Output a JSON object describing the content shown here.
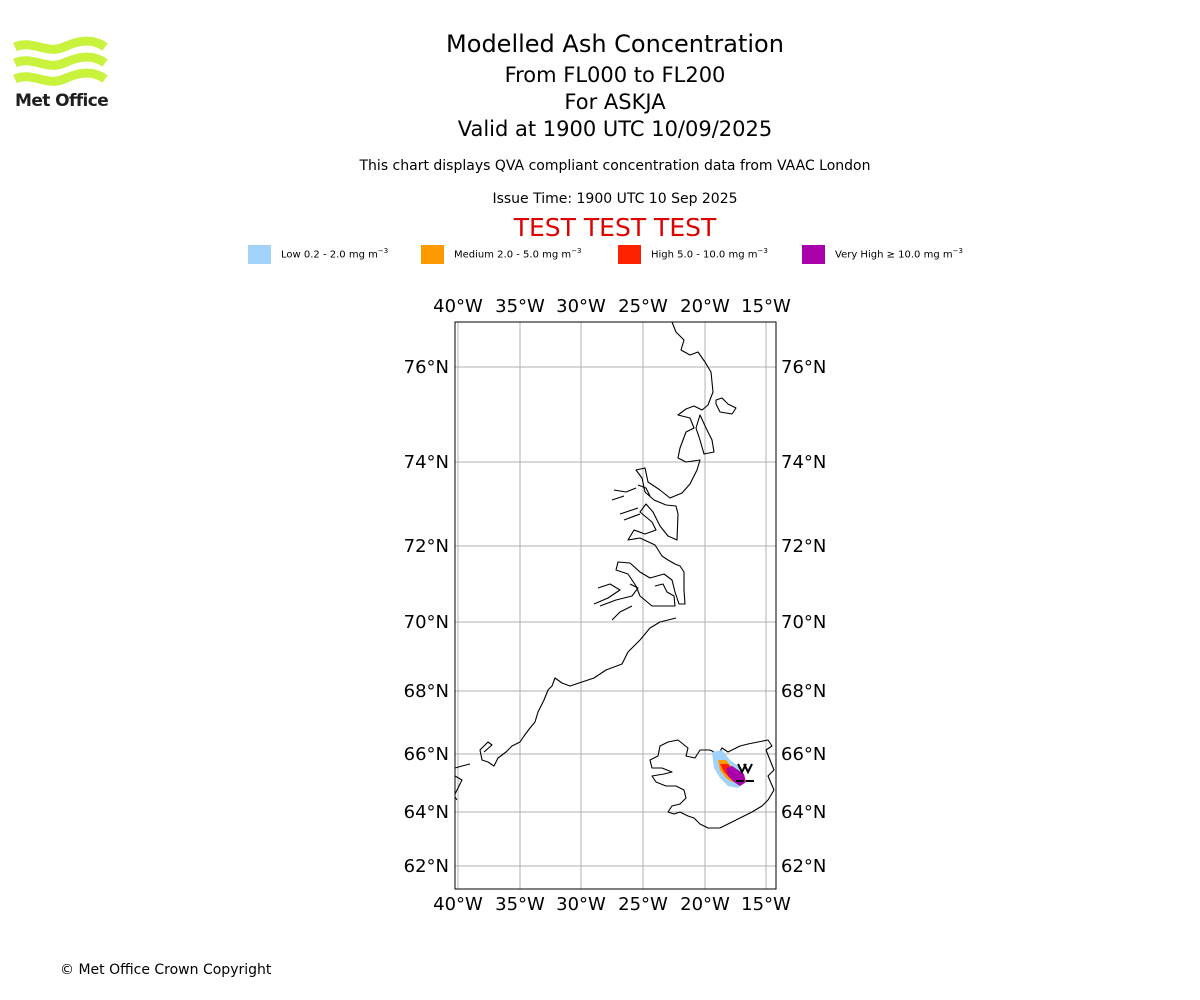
{
  "header": {
    "title": "Modelled Ash Concentration",
    "level_range": "From FL000 to FL200",
    "volcano": "For ASKJA",
    "valid_time": "Valid at 1900 UTC 10/09/2025",
    "note": "This chart displays QVA compliant concentration data from VAAC London",
    "issue_time": "Issue Time: 1900 UTC 10 Sep 2025",
    "test_banner": "TEST TEST TEST"
  },
  "logo": {
    "text": "Met Office",
    "color": "#c8f23c"
  },
  "legend": [
    {
      "label": "Low 0.2 - 2.0 mg m",
      "exp": "−3",
      "color": "#a0d2fa"
    },
    {
      "label": "Medium 2.0 - 5.0 mg m",
      "exp": "−3",
      "color": "#ff9900"
    },
    {
      "label": "High 5.0 - 10.0 mg m",
      "exp": "−3",
      "color": "#ff2200"
    },
    {
      "label": "Very High  ≥  10.0 mg m",
      "exp": "−3",
      "color": "#aa00aa"
    }
  ],
  "map": {
    "lon_ticks": [
      "40°W",
      "35°W",
      "30°W",
      "25°W",
      "20°W",
      "15°W"
    ],
    "lat_ticks": [
      "76°N",
      "74°N",
      "72°N",
      "70°N",
      "68°N",
      "66°N",
      "64°N",
      "62°N"
    ],
    "lon_range": [
      -40.3,
      -14.5
    ],
    "lat_range": [
      61.5,
      77.0
    ],
    "volcano": {
      "name": "ASKJA",
      "lon": -16.75,
      "lat": 65.03
    }
  },
  "footer": {
    "copyright": "© Met Office Crown Copyright"
  }
}
